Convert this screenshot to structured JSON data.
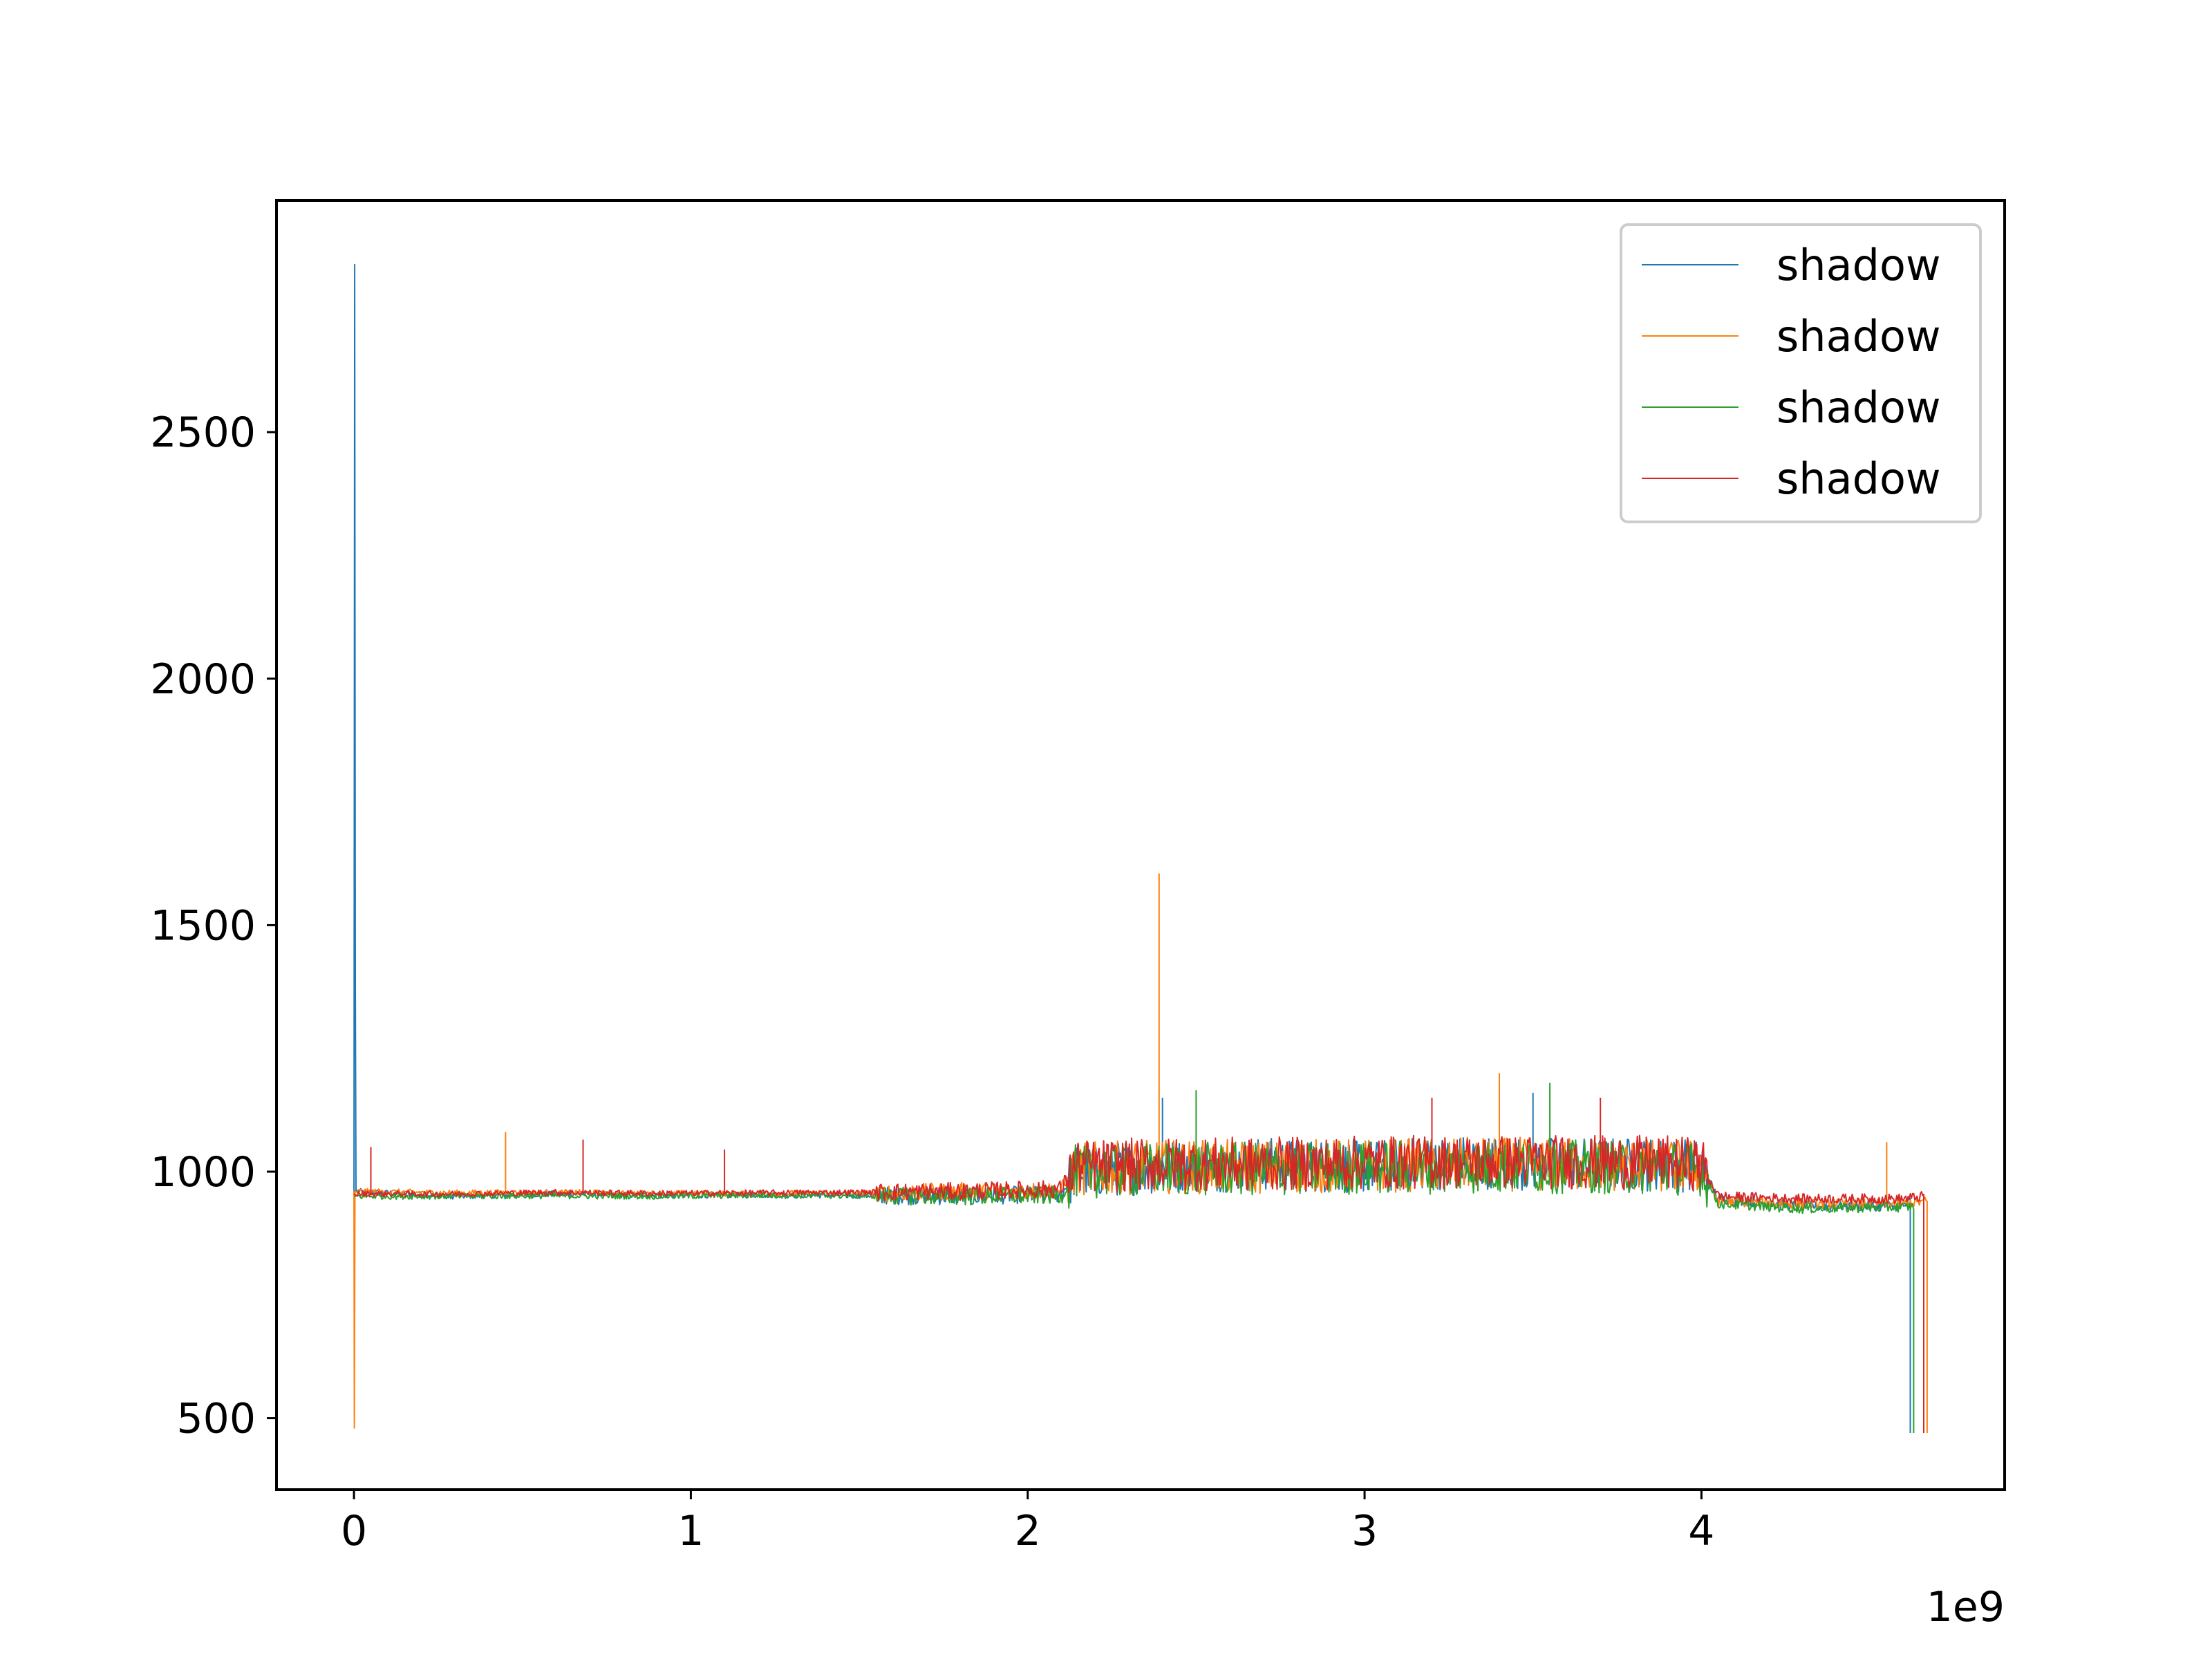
{
  "chart_data": {
    "type": "line",
    "x_offset_label": "1e9",
    "xlim": [
      -0.23,
      4.9
    ],
    "ylim": [
      355,
      2970
    ],
    "x_ticks": [
      {
        "value": 0,
        "label": "0"
      },
      {
        "value": 1,
        "label": "1"
      },
      {
        "value": 2,
        "label": "2"
      },
      {
        "value": 3,
        "label": "3"
      },
      {
        "value": 4,
        "label": "4"
      }
    ],
    "y_ticks": [
      {
        "value": 500,
        "label": "500"
      },
      {
        "value": 1000,
        "label": "1000"
      },
      {
        "value": 1500,
        "label": "1500"
      },
      {
        "value": 2000,
        "label": "2000"
      },
      {
        "value": 2500,
        "label": "2500"
      }
    ],
    "grid": false,
    "legend_position": "top-right",
    "series": [
      {
        "name": "shadow",
        "color": "#1f77b4",
        "points": [
          [
            0,
            960
          ],
          [
            0.002,
            2840
          ],
          [
            0.004,
            1390
          ],
          [
            0.006,
            960
          ],
          [
            0.3,
            950
          ],
          [
            0.6,
            955
          ],
          [
            0.9,
            952
          ],
          [
            1.2,
            953
          ],
          [
            1.5,
            952
          ],
          [
            1.8,
            950
          ],
          [
            2.1,
            955
          ],
          [
            2.14,
            1000
          ],
          [
            2.4,
            1010
          ],
          [
            2.7,
            1015
          ],
          [
            3.0,
            1010
          ],
          [
            3.3,
            1020
          ],
          [
            3.6,
            1015
          ],
          [
            3.9,
            1015
          ],
          [
            4.0,
            1010
          ],
          [
            4.05,
            945
          ],
          [
            4.3,
            930
          ],
          [
            4.6,
            930
          ],
          [
            4.62,
            940
          ]
        ],
        "spikes": [
          [
            2.4,
            1150
          ],
          [
            3.4,
            1190
          ],
          [
            3.5,
            1160
          ]
        ]
      },
      {
        "name": "shadow",
        "color": "#ff7f0e",
        "points": [
          [
            0,
            960
          ],
          [
            0.001,
            480
          ],
          [
            0.003,
            960
          ],
          [
            0.3,
            957
          ],
          [
            0.6,
            958
          ],
          [
            0.9,
            956
          ],
          [
            1.2,
            956
          ],
          [
            1.5,
            956
          ],
          [
            1.8,
            960
          ],
          [
            2.1,
            962
          ],
          [
            2.14,
            1005
          ],
          [
            2.4,
            1010
          ],
          [
            2.7,
            1010
          ],
          [
            3.0,
            1012
          ],
          [
            3.3,
            1015
          ],
          [
            3.6,
            1015
          ],
          [
            3.9,
            1012
          ],
          [
            4.0,
            1010
          ],
          [
            4.05,
            940
          ],
          [
            4.3,
            935
          ],
          [
            4.6,
            935
          ],
          [
            4.67,
            940
          ]
        ],
        "spikes": [
          [
            0.45,
            1080
          ],
          [
            2.39,
            1605
          ],
          [
            3.4,
            1200
          ],
          [
            4.55,
            1060
          ]
        ]
      },
      {
        "name": "shadow",
        "color": "#2ca02c",
        "points": [
          [
            0,
            950
          ],
          [
            0.3,
            950
          ],
          [
            0.6,
            951
          ],
          [
            0.9,
            950
          ],
          [
            1.2,
            952
          ],
          [
            1.5,
            951
          ],
          [
            1.8,
            950
          ],
          [
            2.1,
            952
          ],
          [
            2.14,
            1000
          ],
          [
            2.4,
            1005
          ],
          [
            2.7,
            1005
          ],
          [
            3.0,
            1008
          ],
          [
            3.3,
            1010
          ],
          [
            3.6,
            1010
          ],
          [
            3.9,
            1008
          ],
          [
            4.0,
            1005
          ],
          [
            4.05,
            935
          ],
          [
            4.3,
            925
          ],
          [
            4.6,
            928
          ],
          [
            4.63,
            930
          ]
        ],
        "spikes": [
          [
            2.5,
            1165
          ],
          [
            3.55,
            1180
          ]
        ]
      },
      {
        "name": "shadow",
        "color": "#d62728",
        "points": [
          [
            0,
            955
          ],
          [
            0.3,
            955
          ],
          [
            0.6,
            958
          ],
          [
            0.9,
            956
          ],
          [
            1.2,
            957
          ],
          [
            1.5,
            958
          ],
          [
            1.8,
            960
          ],
          [
            2.1,
            965
          ],
          [
            2.14,
            1010
          ],
          [
            2.4,
            1015
          ],
          [
            2.7,
            1015
          ],
          [
            3.0,
            1018
          ],
          [
            3.3,
            1020
          ],
          [
            3.6,
            1020
          ],
          [
            3.9,
            1018
          ],
          [
            4.0,
            1015
          ],
          [
            4.05,
            950
          ],
          [
            4.3,
            945
          ],
          [
            4.6,
            945
          ],
          [
            4.66,
            950
          ]
        ],
        "spikes": [
          [
            0.05,
            1050
          ],
          [
            0.68,
            1065
          ],
          [
            1.1,
            1045
          ],
          [
            3.2,
            1150
          ],
          [
            3.7,
            1150
          ]
        ]
      }
    ]
  }
}
